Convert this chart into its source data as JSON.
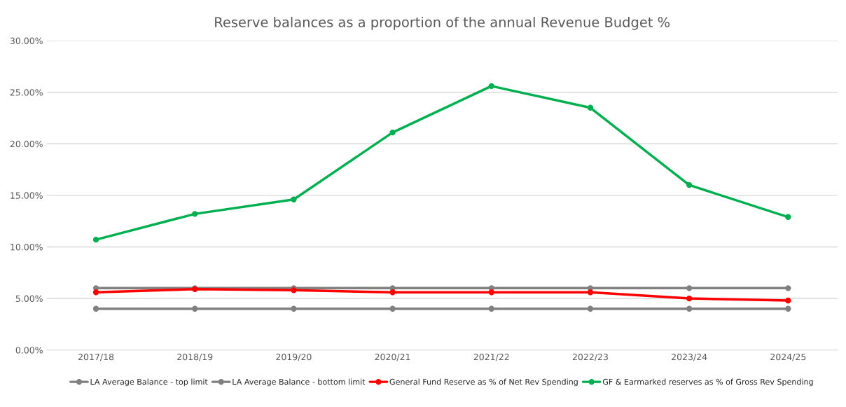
{
  "chart_data": {
    "type": "line",
    "title": "Reserve balances as a proportion of the annual Revenue Budget %",
    "categories": [
      "2017/18",
      "2018/19",
      "2019/20",
      "2020/21",
      "2021/22",
      "2022/23",
      "2023/24",
      "2024/25"
    ],
    "series": [
      {
        "name": "LA Average Balance - top limit",
        "color": "#808080",
        "values": [
          6,
          6,
          6,
          6,
          6,
          6,
          6,
          6
        ]
      },
      {
        "name": "LA Average Balance - bottom limit",
        "color": "#808080",
        "values": [
          4,
          4,
          4,
          4,
          4,
          4,
          4,
          4
        ]
      },
      {
        "name": "General Fund Reserve as % of Net Rev Spending",
        "color": "#ff0000",
        "values": [
          5.6,
          5.9,
          5.8,
          5.6,
          5.6,
          5.6,
          5.0,
          4.8
        ]
      },
      {
        "name": "GF & Earmarked reserves as % of Gross Rev Spending",
        "color": "#00b050",
        "values": [
          10.7,
          13.2,
          14.6,
          21.1,
          25.6,
          23.5,
          16.0,
          12.9
        ]
      }
    ],
    "ylim": [
      0,
      30
    ],
    "yticks": [
      {
        "value": 0,
        "label": "0.00%"
      },
      {
        "value": 5,
        "label": "5.00%"
      },
      {
        "value": 10,
        "label": "10.00%"
      },
      {
        "value": 15,
        "label": "15.00%"
      },
      {
        "value": 20,
        "label": "20.00%"
      },
      {
        "value": 25,
        "label": "25.00%"
      },
      {
        "value": 30,
        "label": "30.00%"
      }
    ],
    "grid": "y",
    "legend": "bottom",
    "marker": "circle",
    "line_style": "solid"
  }
}
